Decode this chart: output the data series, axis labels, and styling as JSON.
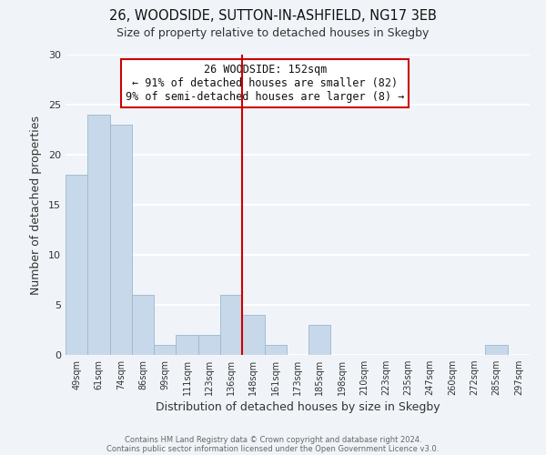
{
  "title1": "26, WOODSIDE, SUTTON-IN-ASHFIELD, NG17 3EB",
  "title2": "Size of property relative to detached houses in Skegby",
  "xlabel": "Distribution of detached houses by size in Skegby",
  "ylabel": "Number of detached properties",
  "bar_color": "#c8d8eb",
  "bar_edge_color": "#9ab8cc",
  "categories": [
    "49sqm",
    "61sqm",
    "74sqm",
    "86sqm",
    "99sqm",
    "111sqm",
    "123sqm",
    "136sqm",
    "148sqm",
    "161sqm",
    "173sqm",
    "185sqm",
    "198sqm",
    "210sqm",
    "223sqm",
    "235sqm",
    "247sqm",
    "260sqm",
    "272sqm",
    "285sqm",
    "297sqm"
  ],
  "values": [
    18,
    24,
    23,
    6,
    1,
    2,
    2,
    6,
    4,
    1,
    0,
    3,
    0,
    0,
    0,
    0,
    0,
    0,
    0,
    1,
    0
  ],
  "ylim": [
    0,
    30
  ],
  "yticks": [
    0,
    5,
    10,
    15,
    20,
    25,
    30
  ],
  "vline_color": "#cc0000",
  "vline_index": 8,
  "annotation_title": "26 WOODSIDE: 152sqm",
  "annotation_line1": "← 91% of detached houses are smaller (82)",
  "annotation_line2": "9% of semi-detached houses are larger (8) →",
  "footer1": "Contains HM Land Registry data © Crown copyright and database right 2024.",
  "footer2": "Contains public sector information licensed under the Open Government Licence v3.0.",
  "background_color": "#f0f4f8",
  "grid_color": "#ffffff"
}
